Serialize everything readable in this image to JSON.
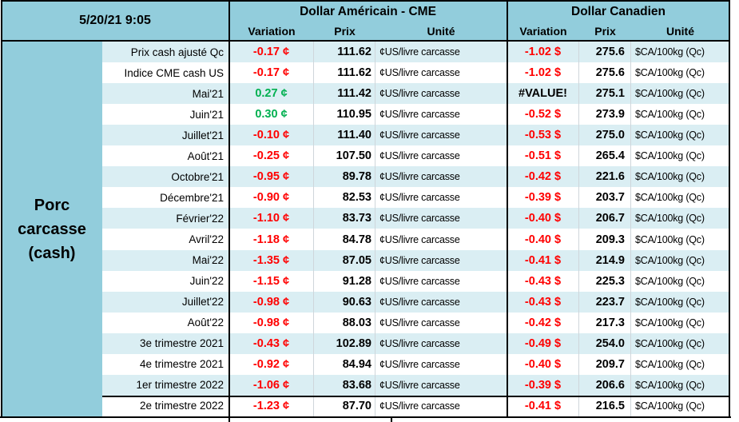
{
  "timestamp": "5/20/21 9:05",
  "row_group": {
    "label": "Porc carcasse (cash)"
  },
  "column_groups": [
    {
      "title": "Dollar Américain - CME",
      "columns": [
        "Variation",
        "Prix",
        "Unité"
      ]
    },
    {
      "title": "Dollar Canadien",
      "columns": [
        "Variation",
        "Prix",
        "Unité"
      ]
    }
  ],
  "colors": {
    "header_bg": "#92CDDC",
    "stripe_bg": "#DAEEF3",
    "negative": "#FF0000",
    "positive": "#00B050",
    "error_text": "#000000"
  },
  "rows": [
    {
      "label": "Prix cash ajusté Qc",
      "us": {
        "variation": "-0.17 ¢",
        "trend": "negative",
        "prix": "111.62",
        "unite": "¢US/livre carcasse"
      },
      "ca": {
        "variation": "-1.02 $",
        "trend": "negative",
        "prix": "275.6",
        "unite": "$CA/100kg (Qc)"
      }
    },
    {
      "label": "Indice CME cash US",
      "us": {
        "variation": "-0.17 ¢",
        "trend": "negative",
        "prix": "111.62",
        "unite": "¢US/livre carcasse"
      },
      "ca": {
        "variation": "-1.02 $",
        "trend": "negative",
        "prix": "275.6",
        "unite": "$CA/100kg (Qc)"
      }
    },
    {
      "label": "Mai'21",
      "us": {
        "variation": "0.27 ¢",
        "trend": "positive",
        "prix": "111.42",
        "unite": "¢US/livre carcasse"
      },
      "ca": {
        "variation": "#VALUE!",
        "trend": "error",
        "prix": "275.1",
        "unite": "$CA/100kg (Qc)"
      }
    },
    {
      "label": "Juin'21",
      "us": {
        "variation": "0.30 ¢",
        "trend": "positive",
        "prix": "110.95",
        "unite": "¢US/livre carcasse"
      },
      "ca": {
        "variation": "-0.52 $",
        "trend": "negative",
        "prix": "273.9",
        "unite": "$CA/100kg (Qc)"
      }
    },
    {
      "label": "Juillet'21",
      "us": {
        "variation": "-0.10 ¢",
        "trend": "negative",
        "prix": "111.40",
        "unite": "¢US/livre carcasse"
      },
      "ca": {
        "variation": "-0.53 $",
        "trend": "negative",
        "prix": "275.0",
        "unite": "$CA/100kg (Qc)"
      }
    },
    {
      "label": "Août'21",
      "us": {
        "variation": "-0.25 ¢",
        "trend": "negative",
        "prix": "107.50",
        "unite": "¢US/livre carcasse"
      },
      "ca": {
        "variation": "-0.51 $",
        "trend": "negative",
        "prix": "265.4",
        "unite": "$CA/100kg (Qc)"
      }
    },
    {
      "label": "Octobre'21",
      "us": {
        "variation": "-0.95 ¢",
        "trend": "negative",
        "prix": "89.78",
        "unite": "¢US/livre carcasse"
      },
      "ca": {
        "variation": "-0.42 $",
        "trend": "negative",
        "prix": "221.6",
        "unite": "$CA/100kg (Qc)"
      }
    },
    {
      "label": "Décembre'21",
      "us": {
        "variation": "-0.90 ¢",
        "trend": "negative",
        "prix": "82.53",
        "unite": "¢US/livre carcasse"
      },
      "ca": {
        "variation": "-0.39 $",
        "trend": "negative",
        "prix": "203.7",
        "unite": "$CA/100kg (Qc)"
      }
    },
    {
      "label": "Février'22",
      "us": {
        "variation": "-1.10 ¢",
        "trend": "negative",
        "prix": "83.73",
        "unite": "¢US/livre carcasse"
      },
      "ca": {
        "variation": "-0.40 $",
        "trend": "negative",
        "prix": "206.7",
        "unite": "$CA/100kg (Qc)"
      }
    },
    {
      "label": "Avril'22",
      "us": {
        "variation": "-1.18 ¢",
        "trend": "negative",
        "prix": "84.78",
        "unite": "¢US/livre carcasse"
      },
      "ca": {
        "variation": "-0.40 $",
        "trend": "negative",
        "prix": "209.3",
        "unite": "$CA/100kg (Qc)"
      }
    },
    {
      "label": "Mai'22",
      "us": {
        "variation": "-1.35 ¢",
        "trend": "negative",
        "prix": "87.05",
        "unite": "¢US/livre carcasse"
      },
      "ca": {
        "variation": "-0.41 $",
        "trend": "negative",
        "prix": "214.9",
        "unite": "$CA/100kg (Qc)"
      }
    },
    {
      "label": "Juin'22",
      "us": {
        "variation": "-1.15 ¢",
        "trend": "negative",
        "prix": "91.28",
        "unite": "¢US/livre carcasse"
      },
      "ca": {
        "variation": "-0.43 $",
        "trend": "negative",
        "prix": "225.3",
        "unite": "$CA/100kg (Qc)"
      }
    },
    {
      "label": "Juillet'22",
      "us": {
        "variation": "-0.98 ¢",
        "trend": "negative",
        "prix": "90.63",
        "unite": "¢US/livre carcasse"
      },
      "ca": {
        "variation": "-0.43 $",
        "trend": "negative",
        "prix": "223.7",
        "unite": "$CA/100kg (Qc)"
      }
    },
    {
      "label": "Août'22",
      "us": {
        "variation": "-0.98 ¢",
        "trend": "negative",
        "prix": "88.03",
        "unite": "¢US/livre carcasse"
      },
      "ca": {
        "variation": "-0.42 $",
        "trend": "negative",
        "prix": "217.3",
        "unite": "$CA/100kg (Qc)"
      }
    },
    {
      "label": "3e trimestre 2021",
      "us": {
        "variation": "-0.43 ¢",
        "trend": "negative",
        "prix": "102.89",
        "unite": "¢US/livre carcasse"
      },
      "ca": {
        "variation": "-0.49 $",
        "trend": "negative",
        "prix": "254.0",
        "unite": "$CA/100kg (Qc)"
      }
    },
    {
      "label": "4e trimestre 2021",
      "us": {
        "variation": "-0.92 ¢",
        "trend": "negative",
        "prix": "84.94",
        "unite": "¢US/livre carcasse"
      },
      "ca": {
        "variation": "-0.40 $",
        "trend": "negative",
        "prix": "209.7",
        "unite": "$CA/100kg (Qc)"
      }
    },
    {
      "label": "1er trimestre 2022",
      "us": {
        "variation": "-1.06 ¢",
        "trend": "negative",
        "prix": "83.68",
        "unite": "¢US/livre carcasse"
      },
      "ca": {
        "variation": "-0.39 $",
        "trend": "negative",
        "prix": "206.6",
        "unite": "$CA/100kg (Qc)"
      }
    },
    {
      "label": "2e trimestre 2022",
      "us": {
        "variation": "-1.23 ¢",
        "trend": "negative",
        "prix": "87.70",
        "unite": "¢US/livre carcasse"
      },
      "ca": {
        "variation": "-0.41 $",
        "trend": "negative",
        "prix": "216.5",
        "unite": "$CA/100kg (Qc)"
      }
    }
  ]
}
